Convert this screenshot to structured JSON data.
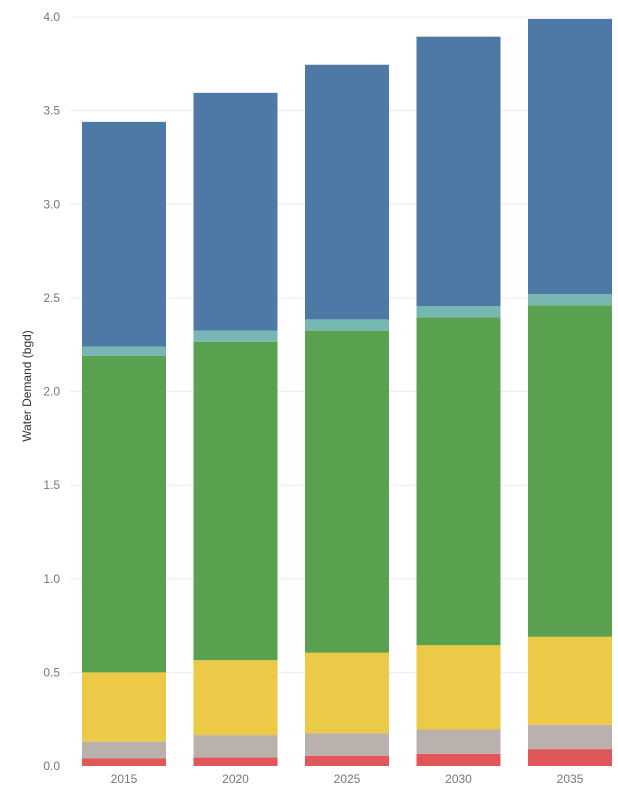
{
  "chart_data": {
    "type": "bar",
    "stacked": true,
    "categories": [
      "2015",
      "2020",
      "2025",
      "2030",
      "2035"
    ],
    "series": [
      {
        "color": "#e15759",
        "values": [
          0.04,
          0.045,
          0.055,
          0.065,
          0.09
        ]
      },
      {
        "color": "#bab0ac",
        "values": [
          0.09,
          0.12,
          0.12,
          0.13,
          0.13
        ]
      },
      {
        "color": "#edc948",
        "values": [
          0.37,
          0.4,
          0.43,
          0.45,
          0.47
        ]
      },
      {
        "color": "#59a14f",
        "values": [
          1.69,
          1.7,
          1.72,
          1.75,
          1.77
        ]
      },
      {
        "color": "#76b7b2",
        "values": [
          0.05,
          0.06,
          0.06,
          0.06,
          0.06
        ]
      },
      {
        "color": "#4e79a7",
        "values": [
          1.2,
          1.27,
          1.36,
          1.44,
          1.47
        ]
      }
    ],
    "ylabel": "Water Demand (bgd)",
    "xlabel": "",
    "ylim": [
      0,
      4.0
    ],
    "yticks": [
      "0.0",
      "0.5",
      "1.0",
      "1.5",
      "2.0",
      "2.5",
      "3.0",
      "3.5",
      "4.0"
    ],
    "grid": true,
    "legend": "none"
  }
}
